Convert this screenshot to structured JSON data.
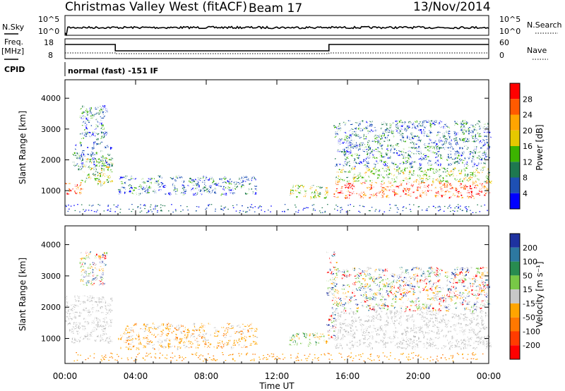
{
  "header": {
    "title": "Christmas Valley West (fitACF)",
    "beam": "Beam 17",
    "date": "13/Nov/2014"
  },
  "top_panels": {
    "nsky_label": "N.Sky",
    "nsky_ticks": [
      "10^5",
      "10^0"
    ],
    "nsearch_label": "N.Search",
    "nsearch_ticks": [
      "10^5",
      "10^0"
    ],
    "freq_label_1": "Freq.",
    "freq_label_2": "[MHz]",
    "freq_ticks": [
      "18",
      "8"
    ],
    "nave_label": "Nave",
    "nave_ticks": [
      "60",
      "0"
    ],
    "cpid_label": "CPID",
    "cpid_text": "normal (fast) -151 IF"
  },
  "chart_data": [
    {
      "type": "heatmap",
      "name": "power",
      "ylabel": "Slant Range [km]",
      "yticks": [
        1000,
        2000,
        3000,
        4000
      ],
      "ylim": [
        200,
        4600
      ],
      "xlim": [
        0,
        24
      ],
      "colorbar_label": "Power [dB]",
      "colorbar_ticks": [
        "28",
        "24",
        "20",
        "16",
        "12",
        "8",
        "4"
      ],
      "colorbar_colors": [
        "#ff0000",
        "#ff5a00",
        "#ffa500",
        "#e6c800",
        "#3cb400",
        "#1e7850",
        "#1e50b4",
        "#0000ff"
      ],
      "regions": [
        {
          "x": [
            0.0,
            0.9
          ],
          "y": [
            900,
            1300
          ],
          "level": "high"
        },
        {
          "x": [
            0.9,
            2.6
          ],
          "y": [
            1200,
            2100
          ],
          "level": "mid"
        },
        {
          "x": [
            0.4,
            2.6
          ],
          "y": [
            1700,
            2600
          ],
          "level": "low"
        },
        {
          "x": [
            0.8,
            2.3
          ],
          "y": [
            2700,
            3800
          ],
          "level": "low"
        },
        {
          "x": [
            3.0,
            10.8
          ],
          "y": [
            900,
            1500
          ],
          "level": "low"
        },
        {
          "x": [
            12.6,
            14.8
          ],
          "y": [
            800,
            1200
          ],
          "level": "mid"
        },
        {
          "x": [
            15.2,
            24.0
          ],
          "y": [
            800,
            1300
          ],
          "level": "high"
        },
        {
          "x": [
            15.2,
            24.0
          ],
          "y": [
            1300,
            1800
          ],
          "level": "mid"
        },
        {
          "x": [
            15.2,
            24.0
          ],
          "y": [
            1800,
            3300
          ],
          "level": "low"
        }
      ]
    },
    {
      "type": "heatmap",
      "name": "velocity",
      "ylabel": "Slant Range [km]",
      "yticks": [
        1000,
        2000,
        3000,
        4000
      ],
      "ylim": [
        200,
        4600
      ],
      "xlim": [
        0,
        24
      ],
      "xticks": [
        "00:00",
        "04:00",
        "08:00",
        "12:00",
        "16:00",
        "20:00",
        "00:00"
      ],
      "xlabel": "Time UT",
      "colorbar_label": "Velocity [m s⁻¹]",
      "colorbar_ticks": [
        "200",
        "100",
        "50",
        "15",
        "-15",
        "-50",
        "-100",
        "-200"
      ],
      "colorbar_colors": [
        "#1e32a0",
        "#2d78a0",
        "#288c50",
        "#78c846",
        "#c8c8c8",
        "#ffa500",
        "#ff7800",
        "#ff3c00",
        "#ff0000"
      ],
      "regions": [
        {
          "x": [
            0.0,
            2.6
          ],
          "y": [
            900,
            2400
          ],
          "level": "gray"
        },
        {
          "x": [
            0.8,
            2.3
          ],
          "y": [
            2700,
            3800
          ],
          "level": "mixed"
        },
        {
          "x": [
            3.0,
            10.8
          ],
          "y": [
            700,
            1500
          ],
          "level": "orange"
        },
        {
          "x": [
            12.6,
            14.8
          ],
          "y": [
            800,
            1200
          ],
          "level": "green"
        },
        {
          "x": [
            14.8,
            15.3
          ],
          "y": [
            1000,
            3900
          ],
          "level": "mixed"
        },
        {
          "x": [
            15.2,
            24.0
          ],
          "y": [
            700,
            1900
          ],
          "level": "gray"
        },
        {
          "x": [
            15.2,
            24.0
          ],
          "y": [
            1900,
            3300
          ],
          "level": "mixed"
        }
      ]
    }
  ]
}
